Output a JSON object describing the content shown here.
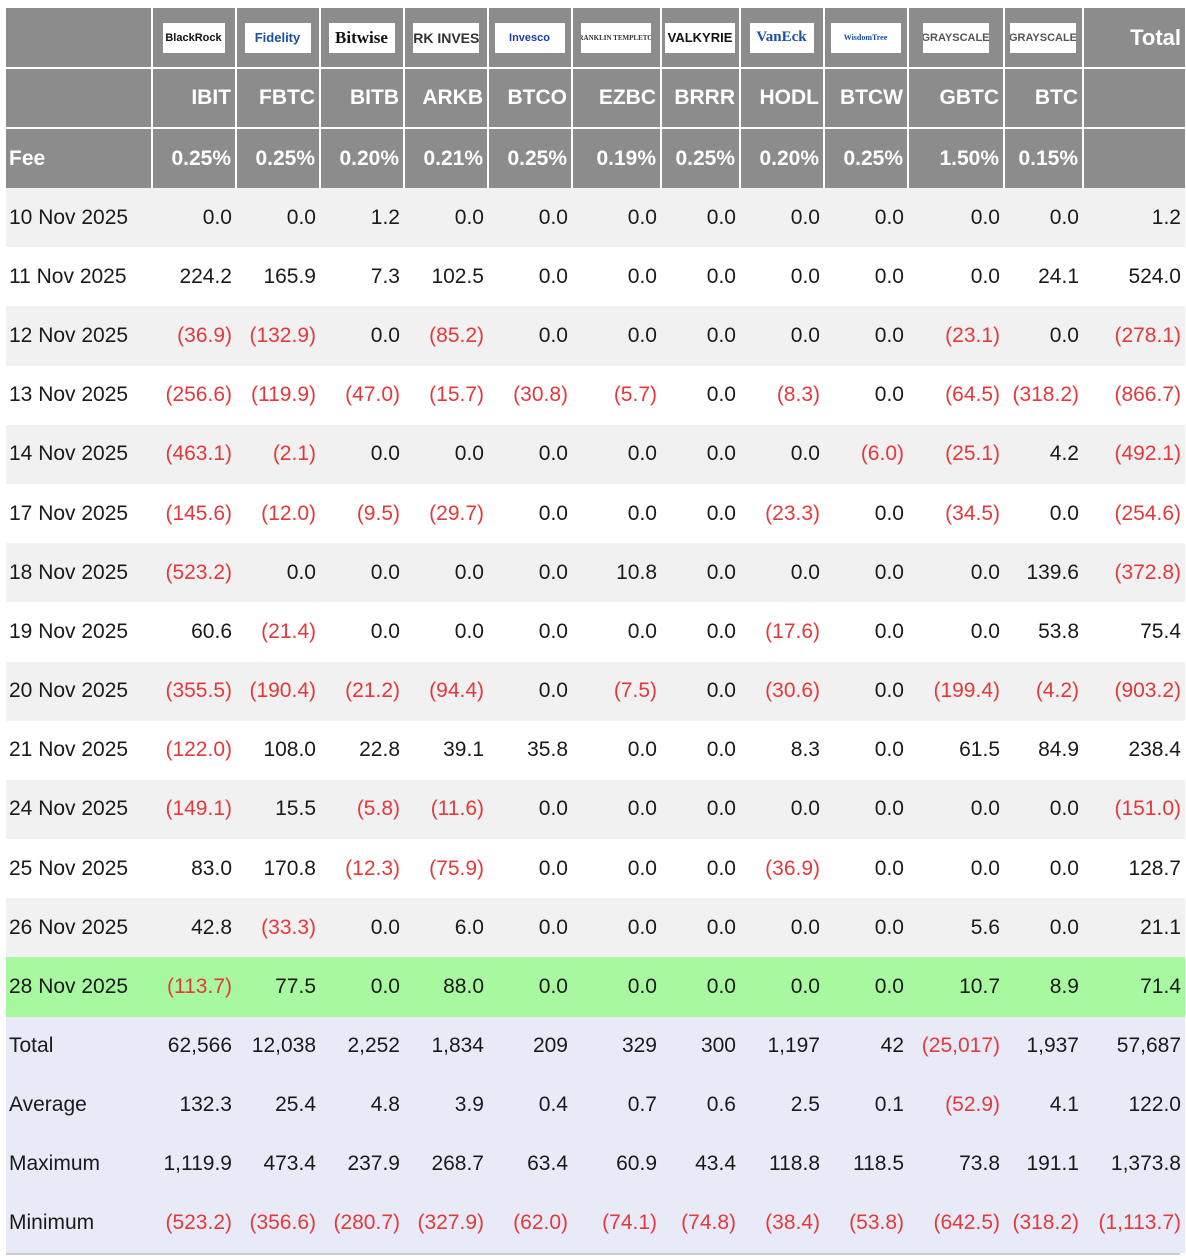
{
  "header": {
    "fee_label": "Fee",
    "total_label": "Total",
    "funds": [
      {
        "logo": "BlackRock",
        "ticker": "IBIT",
        "fee": "0.25%"
      },
      {
        "logo": "Fidelity",
        "ticker": "FBTC",
        "fee": "0.25%"
      },
      {
        "logo": "Bitwise",
        "ticker": "BITB",
        "fee": "0.20%"
      },
      {
        "logo": "ARK INVEST",
        "ticker": "ARKB",
        "fee": "0.21%"
      },
      {
        "logo": "Invesco",
        "ticker": "BTCO",
        "fee": "0.25%"
      },
      {
        "logo": "FRANKLIN TEMPLETON",
        "ticker": "EZBC",
        "fee": "0.19%"
      },
      {
        "logo": "VALKYRIE",
        "ticker": "BRRR",
        "fee": "0.25%"
      },
      {
        "logo": "VanEck",
        "ticker": "HODL",
        "fee": "0.20%"
      },
      {
        "logo": "WisdomTree",
        "ticker": "BTCW",
        "fee": "0.25%"
      },
      {
        "logo": "GRAYSCALE",
        "ticker": "GBTC",
        "fee": "1.50%"
      },
      {
        "logo": "GRAYSCALE",
        "ticker": "BTC",
        "fee": "0.15%"
      }
    ],
    "colors": {
      "header_bg": "#8c8c8c",
      "negative": "#e5383b",
      "highlight": "#a8f8a0",
      "stats_bg": "#e8ebf7"
    }
  },
  "rows": [
    {
      "date": "10 Nov 2025",
      "values": [
        "0.0",
        "0.0",
        "1.2",
        "0.0",
        "0.0",
        "0.0",
        "0.0",
        "0.0",
        "0.0",
        "0.0",
        "0.0",
        "1.2"
      ]
    },
    {
      "date": "11 Nov 2025",
      "values": [
        "224.2",
        "165.9",
        "7.3",
        "102.5",
        "0.0",
        "0.0",
        "0.0",
        "0.0",
        "0.0",
        "0.0",
        "24.1",
        "524.0"
      ]
    },
    {
      "date": "12 Nov 2025",
      "values": [
        "(36.9)",
        "(132.9)",
        "0.0",
        "(85.2)",
        "0.0",
        "0.0",
        "0.0",
        "0.0",
        "0.0",
        "(23.1)",
        "0.0",
        "(278.1)"
      ]
    },
    {
      "date": "13 Nov 2025",
      "values": [
        "(256.6)",
        "(119.9)",
        "(47.0)",
        "(15.7)",
        "(30.8)",
        "(5.7)",
        "0.0",
        "(8.3)",
        "0.0",
        "(64.5)",
        "(318.2)",
        "(866.7)"
      ]
    },
    {
      "date": "14 Nov 2025",
      "values": [
        "(463.1)",
        "(2.1)",
        "0.0",
        "0.0",
        "0.0",
        "0.0",
        "0.0",
        "0.0",
        "(6.0)",
        "(25.1)",
        "4.2",
        "(492.1)"
      ]
    },
    {
      "date": "17 Nov 2025",
      "values": [
        "(145.6)",
        "(12.0)",
        "(9.5)",
        "(29.7)",
        "0.0",
        "0.0",
        "0.0",
        "(23.3)",
        "0.0",
        "(34.5)",
        "0.0",
        "(254.6)"
      ]
    },
    {
      "date": "18 Nov 2025",
      "values": [
        "(523.2)",
        "0.0",
        "0.0",
        "0.0",
        "0.0",
        "10.8",
        "0.0",
        "0.0",
        "0.0",
        "0.0",
        "139.6",
        "(372.8)"
      ]
    },
    {
      "date": "19 Nov 2025",
      "values": [
        "60.6",
        "(21.4)",
        "0.0",
        "0.0",
        "0.0",
        "0.0",
        "0.0",
        "(17.6)",
        "0.0",
        "0.0",
        "53.8",
        "75.4"
      ]
    },
    {
      "date": "20 Nov 2025",
      "values": [
        "(355.5)",
        "(190.4)",
        "(21.2)",
        "(94.4)",
        "0.0",
        "(7.5)",
        "0.0",
        "(30.6)",
        "0.0",
        "(199.4)",
        "(4.2)",
        "(903.2)"
      ]
    },
    {
      "date": "21 Nov 2025",
      "values": [
        "(122.0)",
        "108.0",
        "22.8",
        "39.1",
        "35.8",
        "0.0",
        "0.0",
        "8.3",
        "0.0",
        "61.5",
        "84.9",
        "238.4"
      ]
    },
    {
      "date": "24 Nov 2025",
      "values": [
        "(149.1)",
        "15.5",
        "(5.8)",
        "(11.6)",
        "0.0",
        "0.0",
        "0.0",
        "0.0",
        "0.0",
        "0.0",
        "0.0",
        "(151.0)"
      ]
    },
    {
      "date": "25 Nov 2025",
      "values": [
        "83.0",
        "170.8",
        "(12.3)",
        "(75.9)",
        "0.0",
        "0.0",
        "0.0",
        "(36.9)",
        "0.0",
        "0.0",
        "0.0",
        "128.7"
      ]
    },
    {
      "date": "26 Nov 2025",
      "values": [
        "42.8",
        "(33.3)",
        "0.0",
        "6.0",
        "0.0",
        "0.0",
        "0.0",
        "0.0",
        "0.0",
        "5.6",
        "0.0",
        "21.1"
      ]
    },
    {
      "date": "28 Nov 2025",
      "highlight": true,
      "values": [
        "(113.7)",
        "77.5",
        "0.0",
        "88.0",
        "0.0",
        "0.0",
        "0.0",
        "0.0",
        "0.0",
        "10.7",
        "8.9",
        "71.4"
      ]
    }
  ],
  "stats": [
    {
      "label": "Total",
      "values": [
        "62,566",
        "12,038",
        "2,252",
        "1,834",
        "209",
        "329",
        "300",
        "1,197",
        "42",
        "(25,017)",
        "1,937",
        "57,687"
      ]
    },
    {
      "label": "Average",
      "values": [
        "132.3",
        "25.4",
        "4.8",
        "3.9",
        "0.4",
        "0.7",
        "0.6",
        "2.5",
        "0.1",
        "(52.9)",
        "4.1",
        "122.0"
      ]
    },
    {
      "label": "Maximum",
      "values": [
        "1,119.9",
        "473.4",
        "237.9",
        "268.7",
        "63.4",
        "60.9",
        "43.4",
        "118.8",
        "118.5",
        "73.8",
        "191.1",
        "1,373.8"
      ]
    },
    {
      "label": "Minimum",
      "values": [
        "(523.2)",
        "(356.6)",
        "(280.7)",
        "(327.9)",
        "(62.0)",
        "(74.1)",
        "(74.8)",
        "(38.4)",
        "(53.8)",
        "(642.5)",
        "(318.2)",
        "(1,113.7)"
      ]
    }
  ]
}
